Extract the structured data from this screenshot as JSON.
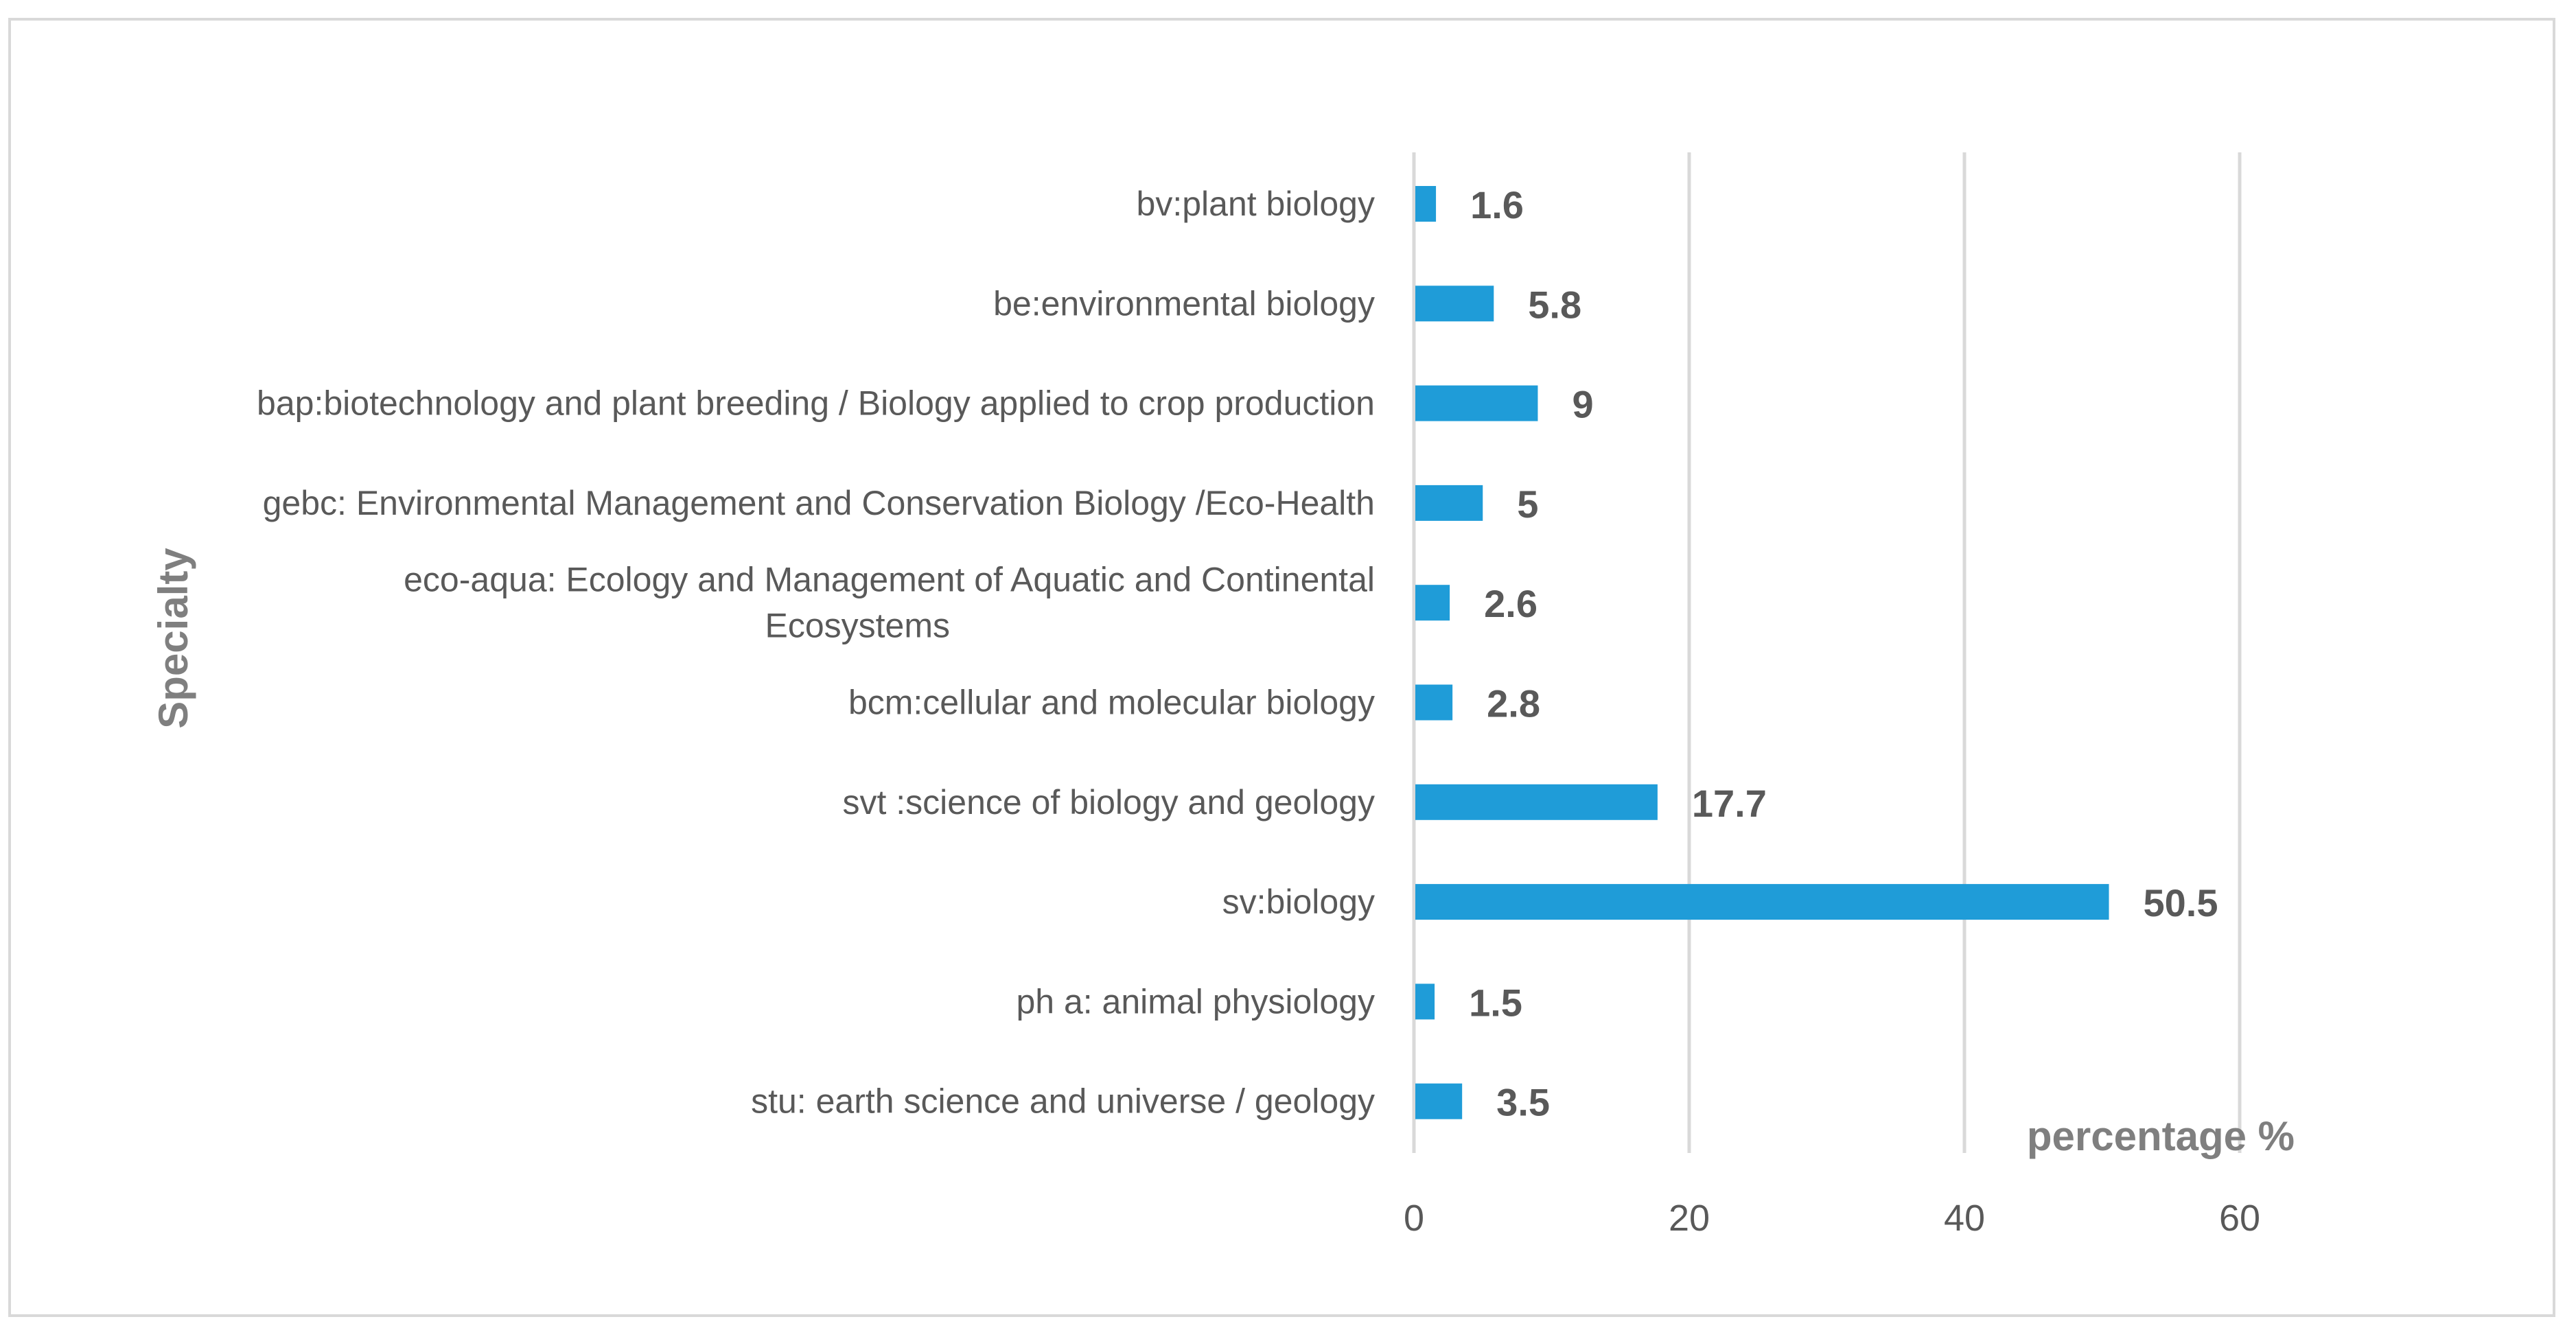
{
  "chart_data": {
    "type": "bar",
    "orientation": "horizontal",
    "ylabel": "Specialty",
    "xlabel": "percentage %",
    "xlim": [
      0,
      60
    ],
    "xticks": [
      0,
      20,
      40,
      60
    ],
    "grid": "vertical",
    "legend": "none",
    "bar_color": "#1f9cd8",
    "categories": [
      [
        "bv:plant biology"
      ],
      [
        "be:environmental biology"
      ],
      [
        "bap:biotechnology and plant breeding / Biology applied to crop production"
      ],
      [
        "gebc: Environmental Management and Conservation Biology /Eco-Health"
      ],
      [
        "eco-aqua: Ecology and Management of Aquatic and Continental",
        "Ecosystems"
      ],
      [
        "bcm:cellular and molecular biology"
      ],
      [
        "svt :science of biology and geology"
      ],
      [
        "sv:biology"
      ],
      [
        "ph a: animal physiology"
      ],
      [
        "stu: earth science and universe / geology"
      ]
    ],
    "values": [
      1.6,
      5.8,
      9,
      5,
      2.6,
      2.8,
      17.7,
      50.5,
      1.5,
      3.5
    ],
    "value_labels": [
      "1.6",
      "5.8",
      "9",
      "5",
      "2.6",
      "2.8",
      "17.7",
      "50.5",
      "1.5",
      "3.5"
    ]
  }
}
